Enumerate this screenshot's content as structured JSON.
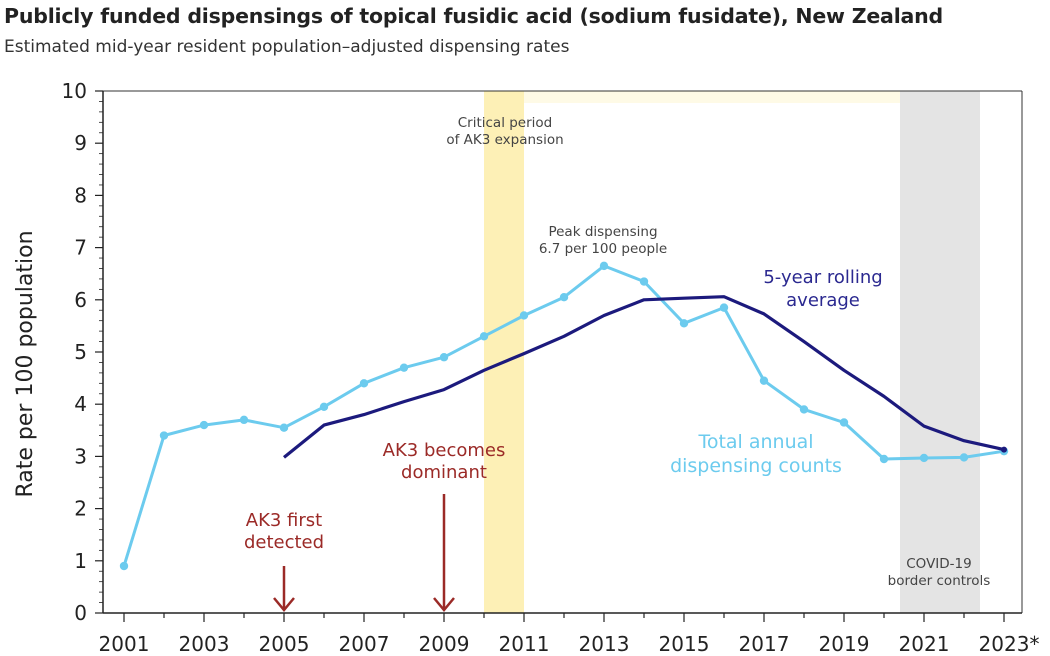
{
  "title": "Publicly funded dispensings of topical fusidic acid (sodium fusidate), New Zealand",
  "subtitle": "Estimated mid-year resident population–adjusted dispensing rates",
  "chart_data": {
    "type": "line",
    "ylabel": "Rate per 100 population",
    "xlabel": "",
    "ylim": [
      0,
      10
    ],
    "xlim": [
      2001,
      2023
    ],
    "y_ticks": [
      "0",
      "1",
      "2",
      "3",
      "4",
      "5",
      "6",
      "7",
      "8",
      "9",
      "10"
    ],
    "x_tick_labels": [
      "2001",
      "2003",
      "2005",
      "2007",
      "2009",
      "2011",
      "2013",
      "2015",
      "2017",
      "2019",
      "2021",
      "2023*"
    ],
    "series": [
      {
        "name": "Total annual dispensing counts",
        "color": "#6ccbee",
        "x": [
          2001,
          2002,
          2003,
          2004,
          2005,
          2006,
          2007,
          2008,
          2009,
          2010,
          2011,
          2012,
          2013,
          2014,
          2015,
          2016,
          2017,
          2018,
          2019,
          2020,
          2021,
          2022,
          2023
        ],
        "values": [
          0.9,
          3.4,
          3.6,
          3.7,
          3.55,
          3.95,
          4.4,
          4.7,
          4.9,
          5.3,
          5.7,
          6.05,
          6.65,
          6.35,
          5.55,
          5.85,
          4.45,
          3.9,
          3.65,
          2.95,
          2.97,
          2.98,
          3.1
        ]
      },
      {
        "name": "5-year rolling average",
        "color": "#1c1a7d",
        "x": [
          2005,
          2006,
          2007,
          2008,
          2009,
          2010,
          2011,
          2012,
          2013,
          2014,
          2015,
          2016,
          2017,
          2018,
          2019,
          2020,
          2021,
          2022,
          2023
        ],
        "values": [
          2.98,
          3.6,
          3.8,
          4.05,
          4.28,
          4.65,
          4.97,
          5.3,
          5.7,
          6.0,
          6.03,
          6.06,
          5.73,
          5.2,
          4.65,
          4.15,
          3.58,
          3.3,
          3.13
        ]
      }
    ],
    "shaded_regions": [
      {
        "label": "Critical period of AK3 expansion",
        "label_lines": [
          "Critical period",
          "of AK3 expansion"
        ],
        "x_start": 2010,
        "x_end": 2011,
        "color": "#fdf0b6"
      },
      {
        "label": "COVID-19 border controls",
        "label_lines": [
          "COVID-19",
          "border controls"
        ],
        "x_start": 2020.4,
        "x_end": 2022.4,
        "color": "#e4e4e4"
      }
    ],
    "annotations": {
      "peak": {
        "lines": [
          "Peak dispensing",
          "6.7 per 100 people"
        ]
      },
      "ak3_first": {
        "lines": [
          "AK3 first",
          "detected"
        ],
        "x": 2005
      },
      "ak3_dominant": {
        "lines": [
          "AK3 becomes",
          "dominant"
        ],
        "x": 2009
      },
      "rolling_label": {
        "lines": [
          "5-year rolling",
          "average"
        ]
      },
      "total_label": {
        "lines": [
          "Total annual",
          "dispensing counts"
        ]
      }
    },
    "colors": {
      "accent_red": "#9b2a27",
      "light_line": "#6ccbee",
      "dark_line": "#1c1a7d"
    }
  }
}
